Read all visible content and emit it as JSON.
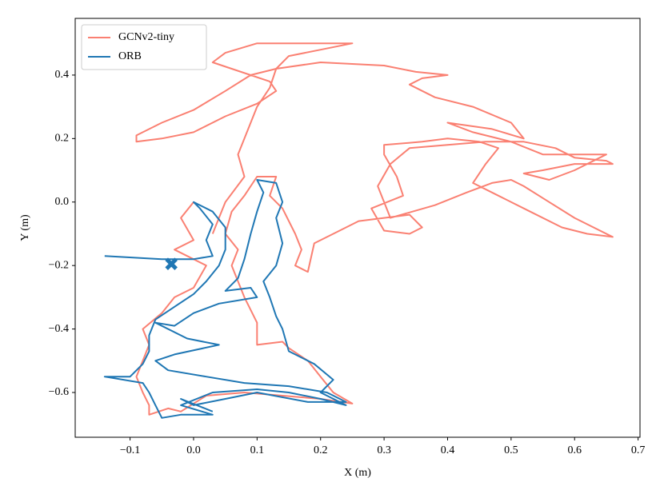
{
  "chart_data": {
    "type": "line",
    "x_label": "X (m)",
    "y_label": "Y (m)",
    "xlim": [
      -0.1864,
      0.703
    ],
    "ylim": [
      -0.741,
      0.5786
    ],
    "xticks": [
      {
        "value": -0.1,
        "label": "−0.1"
      },
      {
        "value": 0,
        "label": "0.0"
      },
      0.1,
      0.2,
      0.3,
      0.4,
      0.5,
      0.6,
      0.7
    ],
    "yticks": [
      {
        "value": -0.6,
        "label": "−0.6"
      },
      {
        "value": -0.4,
        "label": "−0.4"
      },
      {
        "value": -0.2,
        "label": "−0.2"
      },
      {
        "value": 0,
        "label": "0.0"
      },
      0.2,
      0.4
    ],
    "legend": "upper-left",
    "series": [
      {
        "name": "GCNv2-tiny",
        "color": "#fa8072",
        "x": [
          0.0,
          -0.02,
          0.0,
          -0.03,
          0.02,
          0.0,
          -0.03,
          -0.05,
          -0.08,
          -0.07,
          -0.08,
          -0.09,
          -0.08,
          -0.07,
          -0.07,
          -0.04,
          -0.02,
          0.02,
          0.08,
          0.14,
          0.2,
          0.25,
          0.22,
          0.2,
          0.18,
          0.15,
          0.14,
          0.1,
          0.1,
          0.08,
          0.07,
          0.06,
          0.07,
          0.05,
          0.06,
          0.08,
          0.1,
          0.13,
          0.12,
          0.14,
          0.16,
          0.17,
          0.16,
          0.18,
          0.19,
          0.22,
          0.26,
          0.3,
          0.34,
          0.36,
          0.34,
          0.3,
          0.28,
          0.33,
          0.32,
          0.3,
          0.3,
          0.36,
          0.4,
          0.45,
          0.48,
          0.46,
          0.44,
          0.48,
          0.53,
          0.58,
          0.62,
          0.66,
          0.6,
          0.56,
          0.52,
          0.5,
          0.47,
          0.43,
          0.38,
          0.31,
          0.29,
          0.31,
          0.34,
          0.4,
          0.46,
          0.52,
          0.57,
          0.6,
          0.65,
          0.66,
          0.6,
          0.55,
          0.52,
          0.56,
          0.6,
          0.65,
          0.62,
          0.55,
          0.5,
          0.44,
          0.4,
          0.47,
          0.52,
          0.5,
          0.44,
          0.38,
          0.34,
          0.36,
          0.4,
          0.35,
          0.3,
          0.2,
          0.13,
          0.09,
          0.05,
          0.0,
          -0.05,
          -0.09,
          -0.09,
          -0.05,
          0.0,
          0.05,
          0.1,
          0.13,
          0.12,
          0.06,
          0.03,
          0.05,
          0.1,
          0.18,
          0.25,
          0.2,
          0.15,
          0.13,
          0.12,
          0.1,
          0.08,
          0.07,
          0.08,
          0.05,
          0.04,
          0.03
        ],
        "y": [
          0.0,
          -0.05,
          -0.12,
          -0.15,
          -0.2,
          -0.27,
          -0.3,
          -0.35,
          -0.4,
          -0.45,
          -0.5,
          -0.55,
          -0.6,
          -0.64,
          -0.67,
          -0.65,
          -0.66,
          -0.61,
          -0.6,
          -0.61,
          -0.62,
          -0.635,
          -0.6,
          -0.55,
          -0.5,
          -0.46,
          -0.44,
          -0.45,
          -0.38,
          -0.3,
          -0.25,
          -0.2,
          -0.15,
          -0.1,
          -0.03,
          0.02,
          0.08,
          0.08,
          0.02,
          -0.02,
          -0.1,
          -0.15,
          -0.2,
          -0.22,
          -0.13,
          -0.1,
          -0.06,
          -0.05,
          -0.04,
          -0.08,
          -0.1,
          -0.09,
          -0.02,
          0.02,
          0.08,
          0.15,
          0.18,
          0.19,
          0.2,
          0.19,
          0.17,
          0.12,
          0.06,
          0.02,
          -0.03,
          -0.08,
          -0.1,
          -0.11,
          -0.05,
          0.0,
          0.05,
          0.07,
          0.06,
          0.03,
          -0.01,
          -0.05,
          0.05,
          0.12,
          0.17,
          0.18,
          0.19,
          0.19,
          0.17,
          0.14,
          0.13,
          0.12,
          0.12,
          0.1,
          0.09,
          0.07,
          0.1,
          0.15,
          0.15,
          0.15,
          0.19,
          0.22,
          0.25,
          0.23,
          0.2,
          0.25,
          0.3,
          0.33,
          0.37,
          0.39,
          0.4,
          0.41,
          0.43,
          0.44,
          0.42,
          0.4,
          0.35,
          0.29,
          0.25,
          0.21,
          0.19,
          0.2,
          0.22,
          0.27,
          0.31,
          0.35,
          0.38,
          0.42,
          0.44,
          0.47,
          0.5,
          0.5,
          0.5,
          0.48,
          0.46,
          0.42,
          0.36,
          0.3,
          0.2,
          0.15,
          0.08,
          0.0,
          -0.05,
          -0.1
        ]
      },
      {
        "name": "ORB",
        "color": "#1f77b4",
        "x": [
          -0.14,
          -0.05,
          0.0,
          0.03,
          0.02,
          0.03,
          0.01,
          0.0,
          0.03,
          0.05,
          0.05,
          0.04,
          0.02,
          0.0,
          -0.03,
          -0.06,
          -0.07,
          -0.07,
          -0.08,
          -0.1,
          -0.14,
          -0.08,
          -0.07,
          -0.06,
          -0.05,
          -0.02,
          0.03,
          -0.02,
          0.03,
          0.1,
          0.15,
          0.2,
          0.24,
          0.2,
          0.22,
          0.19,
          0.15,
          0.14,
          0.13,
          0.12,
          0.11,
          0.13,
          0.14,
          0.13,
          0.14,
          0.13,
          0.1,
          0.11,
          0.1,
          0.09,
          0.08,
          0.07,
          0.05,
          0.09,
          0.1,
          0.04,
          0.0,
          -0.03,
          -0.06,
          -0.01,
          0.04,
          -0.03,
          -0.06,
          -0.04,
          0.02,
          0.08,
          0.15,
          0.21,
          0.24,
          0.18,
          0.1,
          0.05,
          0.0,
          -0.02,
          0.03
        ],
        "y": [
          -0.17,
          -0.18,
          -0.18,
          -0.17,
          -0.12,
          -0.07,
          -0.02,
          0.0,
          -0.03,
          -0.08,
          -0.15,
          -0.2,
          -0.25,
          -0.29,
          -0.33,
          -0.37,
          -0.42,
          -0.47,
          -0.51,
          -0.55,
          -0.55,
          -0.57,
          -0.6,
          -0.64,
          -0.68,
          -0.67,
          -0.67,
          -0.64,
          -0.6,
          -0.59,
          -0.6,
          -0.62,
          -0.64,
          -0.6,
          -0.56,
          -0.51,
          -0.47,
          -0.4,
          -0.36,
          -0.3,
          -0.25,
          -0.2,
          -0.13,
          -0.05,
          0.0,
          0.06,
          0.07,
          0.03,
          -0.03,
          -0.1,
          -0.18,
          -0.24,
          -0.28,
          -0.27,
          -0.3,
          -0.32,
          -0.35,
          -0.39,
          -0.38,
          -0.43,
          -0.45,
          -0.48,
          -0.5,
          -0.53,
          -0.55,
          -0.57,
          -0.58,
          -0.6,
          -0.63,
          -0.63,
          -0.6,
          -0.62,
          -0.64,
          -0.62,
          -0.66
        ],
        "end": {
          "x": -0.035,
          "y": -0.195
        }
      }
    ]
  }
}
